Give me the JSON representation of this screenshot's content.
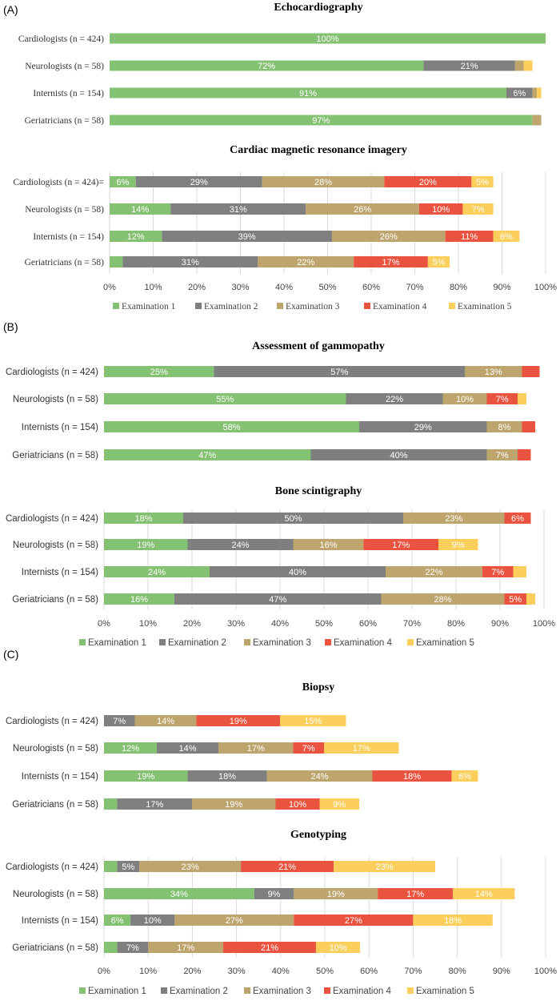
{
  "colors": {
    "Examination 1": "#85C173",
    "Examination 2": "#7F7F7F",
    "Examination 3": "#BEA56E",
    "Examination 4": "#E9533F",
    "Examination 5": "#FCCF5D"
  },
  "panels": [
    {
      "label": "(A)",
      "charts": [
        {
          "type": "bar",
          "orientation": "horizontal-stacked",
          "title": "Echocardiography",
          "categories": [
            "Cardiologists (n = 424)",
            "Neurologists (n = 58)",
            "Internists (n = 154)",
            "Geriatricians (n = 58)"
          ],
          "series": [
            {
              "name": "Examination 1",
              "values": [
                100,
                72,
                91,
                97
              ],
              "labels": [
                "100%",
                "72%",
                "91%",
                "97%"
              ]
            },
            {
              "name": "Examination 2",
              "values": [
                0,
                21,
                6,
                0
              ],
              "labels": [
                "",
                "21%",
                "6%",
                ""
              ]
            },
            {
              "name": "Examination 3",
              "values": [
                0,
                2,
                1,
                2
              ],
              "labels": [
                "",
                "",
                "",
                ""
              ]
            },
            {
              "name": "Examination 4",
              "values": [
                0,
                0,
                0,
                0
              ],
              "labels": [
                "",
                "",
                "",
                ""
              ]
            },
            {
              "name": "Examination 5",
              "values": [
                0,
                2,
                1,
                0
              ],
              "labels": [
                "",
                "",
                "",
                ""
              ]
            }
          ],
          "xlim": [
            0,
            100
          ],
          "xticks": [],
          "legend": []
        },
        {
          "type": "bar",
          "orientation": "horizontal-stacked",
          "title": "Cardiac magnetic resonance imagery",
          "categories": [
            "Cardiologists (n = 424)=",
            "Neurologists (n = 58)",
            "Internists (n = 154)",
            "Geriatricians (n = 58)"
          ],
          "series": [
            {
              "name": "Examination 1",
              "values": [
                6,
                14,
                12,
                3
              ],
              "labels": [
                "6%",
                "14%",
                "12%",
                ""
              ]
            },
            {
              "name": "Examination 2",
              "values": [
                29,
                31,
                39,
                31
              ],
              "labels": [
                "29%",
                "31%",
                "39%",
                "31%"
              ]
            },
            {
              "name": "Examination 3",
              "values": [
                28,
                26,
                26,
                22
              ],
              "labels": [
                "28%",
                "26%",
                "26%",
                "22%"
              ]
            },
            {
              "name": "Examination 4",
              "values": [
                20,
                10,
                11,
                17
              ],
              "labels": [
                "20%",
                "10%",
                "11%",
                "17%"
              ]
            },
            {
              "name": "Examination 5",
              "values": [
                5,
                7,
                6,
                5
              ],
              "labels": [
                "5%",
                "7%",
                "6%",
                "5%"
              ]
            }
          ],
          "xlim": [
            0,
            100
          ],
          "xticks": [
            "0%",
            "10%",
            "20%",
            "30%",
            "40%",
            "50%",
            "60%",
            "70%",
            "80%",
            "90%",
            "100%"
          ],
          "legend": [
            "Examination 1",
            "Examination 2",
            "Examination 3",
            "Examination 4",
            "Examination 5"
          ]
        }
      ]
    },
    {
      "label": "(B)",
      "charts": [
        {
          "type": "bar",
          "orientation": "horizontal-stacked",
          "title": "Assessment of gammopathy",
          "categories": [
            "Cardiologists (n = 424)",
            "Neurologists (n = 58)",
            "Internists (n = 154)",
            "Geriatricians (n = 58)"
          ],
          "series": [
            {
              "name": "Examination 1",
              "values": [
                25,
                55,
                58,
                47
              ],
              "labels": [
                "25%",
                "55%",
                "58%",
                "47%"
              ]
            },
            {
              "name": "Examination 2",
              "values": [
                57,
                22,
                29,
                40
              ],
              "labels": [
                "57%",
                "22%",
                "29%",
                "40%"
              ]
            },
            {
              "name": "Examination 3",
              "values": [
                13,
                10,
                8,
                7
              ],
              "labels": [
                "13%",
                "10%",
                "8%",
                "7%"
              ]
            },
            {
              "name": "Examination 4",
              "values": [
                4,
                7,
                3,
                3
              ],
              "labels": [
                "",
                "7%",
                "",
                ""
              ]
            },
            {
              "name": "Examination 5",
              "values": [
                0,
                2,
                0,
                0
              ],
              "labels": [
                "",
                "",
                "",
                ""
              ]
            }
          ],
          "xlim": [
            0,
            100
          ],
          "xticks": [],
          "legend": []
        },
        {
          "type": "bar",
          "orientation": "horizontal-stacked",
          "title": "Bone scintigraphy",
          "categories": [
            "Cardiologists (n = 424)",
            "Neurologists (n = 58)",
            "Internists (n = 154)",
            "Geriatricians (n = 58)"
          ],
          "series": [
            {
              "name": "Examination 1",
              "values": [
                18,
                19,
                24,
                16
              ],
              "labels": [
                "18%",
                "19%",
                "24%",
                "16%"
              ]
            },
            {
              "name": "Examination 2",
              "values": [
                50,
                24,
                40,
                47
              ],
              "labels": [
                "50%",
                "24%",
                "40%",
                "47%"
              ]
            },
            {
              "name": "Examination 3",
              "values": [
                23,
                16,
                22,
                28
              ],
              "labels": [
                "23%",
                "16%",
                "22%",
                "28%"
              ]
            },
            {
              "name": "Examination 4",
              "values": [
                6,
                17,
                7,
                5
              ],
              "labels": [
                "6%",
                "17%",
                "7%",
                "5%"
              ]
            },
            {
              "name": "Examination 5",
              "values": [
                0,
                9,
                3,
                2
              ],
              "labels": [
                "",
                "9%",
                "",
                ""
              ]
            }
          ],
          "xlim": [
            0,
            100
          ],
          "xticks": [
            "0%",
            "10%",
            "20%",
            "30%",
            "40%",
            "50%",
            "60%",
            "70%",
            "80%",
            "90%",
            "100%"
          ],
          "legend": [
            "Examination 1",
            "Examination 2",
            "Examination 3",
            "Examination 4",
            "Examination 5"
          ]
        }
      ]
    },
    {
      "label": "(C)",
      "charts": [
        {
          "type": "bar",
          "orientation": "horizontal-stacked",
          "title": "Biopsy",
          "categories": [
            "Cardiologists (n = 424)",
            "Neurologists (n = 58)",
            "Internists (n = 154)",
            "Geriatricians (n = 58)"
          ],
          "series": [
            {
              "name": "Examination 1",
              "values": [
                0,
                12,
                19,
                3
              ],
              "labels": [
                "",
                "12%",
                "19%",
                ""
              ]
            },
            {
              "name": "Examination 2",
              "values": [
                7,
                14,
                18,
                17
              ],
              "labels": [
                "7%",
                "14%",
                "18%",
                "17%"
              ]
            },
            {
              "name": "Examination 3",
              "values": [
                14,
                17,
                24,
                19
              ],
              "labels": [
                "14%",
                "17%",
                "24%",
                "19%"
              ]
            },
            {
              "name": "Examination 4",
              "values": [
                19,
                7,
                18,
                10
              ],
              "labels": [
                "19%",
                "7%",
                "18%",
                "10%"
              ]
            },
            {
              "name": "Examination 5",
              "values": [
                15,
                17,
                6,
                9
              ],
              "labels": [
                "15%",
                "17%",
                "6%",
                "9%"
              ]
            }
          ],
          "xlim": [
            0,
            100
          ],
          "xticks": [],
          "legend": []
        },
        {
          "type": "bar",
          "orientation": "horizontal-stacked",
          "title": "Genotyping",
          "categories": [
            "Cardiologists (n = 424)",
            "Neurologists (n = 58)",
            "Internists (n = 154)",
            "Geriatricians (n = 58)"
          ],
          "series": [
            {
              "name": "Examination 1",
              "values": [
                3,
                34,
                6,
                3
              ],
              "labels": [
                "",
                "34%",
                "6%",
                ""
              ]
            },
            {
              "name": "Examination 2",
              "values": [
                5,
                9,
                10,
                7
              ],
              "labels": [
                "5%",
                "9%",
                "10%",
                "7%"
              ]
            },
            {
              "name": "Examination 3",
              "values": [
                23,
                19,
                27,
                17
              ],
              "labels": [
                "23%",
                "19%",
                "27%",
                "17%"
              ]
            },
            {
              "name": "Examination 4",
              "values": [
                21,
                17,
                27,
                21
              ],
              "labels": [
                "21%",
                "17%",
                "27%",
                "21%"
              ]
            },
            {
              "name": "Examination 5",
              "values": [
                23,
                14,
                18,
                10
              ],
              "labels": [
                "23%",
                "14%",
                "18%",
                "10%"
              ]
            }
          ],
          "xlim": [
            0,
            100
          ],
          "xticks": [
            "0%",
            "10%",
            "20%",
            "30%",
            "40%",
            "50%",
            "60%",
            "70%",
            "80%",
            "90%",
            "100%"
          ],
          "legend": [
            "Examination 1",
            "Examination 2",
            "Examination 3",
            "Examination 4",
            "Examination 5"
          ]
        }
      ]
    }
  ]
}
